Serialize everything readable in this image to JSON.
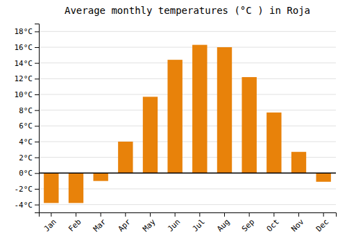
{
  "chart_data": {
    "type": "bar",
    "title": "Average monthly temperatures (°C ) in Roja",
    "categories": [
      "Jan",
      "Feb",
      "Mar",
      "Apr",
      "May",
      "Jun",
      "Jul",
      "Aug",
      "Sep",
      "Oct",
      "Nov",
      "Dec"
    ],
    "values": [
      -3.8,
      -3.8,
      -1.0,
      4.0,
      9.7,
      14.4,
      16.3,
      16.0,
      12.2,
      7.7,
      2.7,
      -1.1
    ],
    "color": "#E8820A",
    "ylim": [
      -5,
      19
    ],
    "yticks": [
      {
        "value": -4,
        "label": "-4°C"
      },
      {
        "value": -2,
        "label": "-2°C"
      },
      {
        "value": 0,
        "label": "0°C"
      },
      {
        "value": 2,
        "label": "2°C"
      },
      {
        "value": 4,
        "label": "4°C"
      },
      {
        "value": 6,
        "label": "6°C"
      },
      {
        "value": 8,
        "label": "8°C"
      },
      {
        "value": 10,
        "label": "10°C"
      },
      {
        "value": 12,
        "label": "12°C"
      },
      {
        "value": 14,
        "label": "14°C"
      },
      {
        "value": 16,
        "label": "16°C"
      },
      {
        "value": 18,
        "label": "18°C"
      }
    ],
    "grid": true
  }
}
